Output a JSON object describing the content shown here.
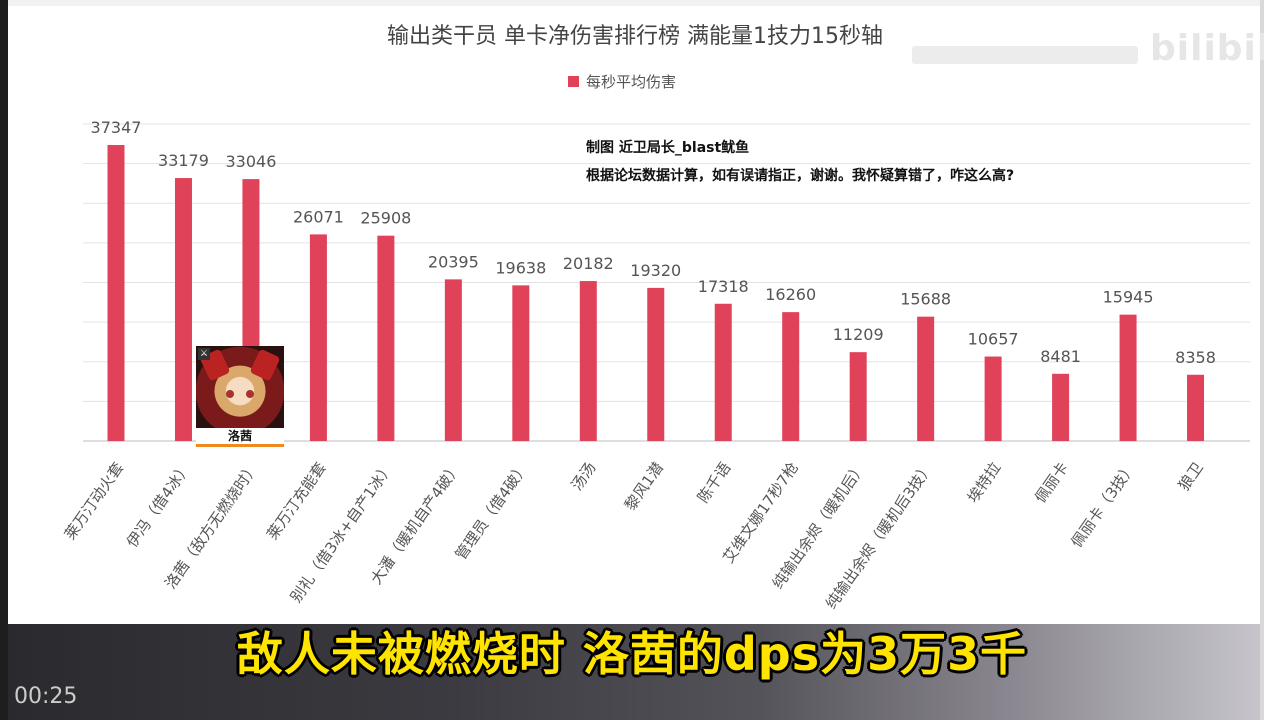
{
  "chart_data": {
    "type": "bar",
    "title": "输出类干员 单卡净伤害排行榜 满能量1技力15秒轴",
    "legend": {
      "label": "每秒平均伤害",
      "position": "top-center",
      "color": "#e0425a"
    },
    "categories": [
      "莱万汀动火套",
      "伊冯（借4冰）",
      "洛茜（敌方无燃烧时）",
      "莱万汀充能套",
      "别礼（借3冰+自产1冰）",
      "大潘（暖机自产4破）",
      "管理员（借4破）",
      "汤汤",
      "黎风1潜",
      "陈千语",
      "艾维文娜17秒7枪",
      "纯输出余烬（暖机后）",
      "纯输出余烬（暖机后3技）",
      "埃特拉",
      "佩丽卡",
      "佩丽卡（3技）",
      "狼卫"
    ],
    "series": [
      {
        "name": "每秒平均伤害",
        "values": [
          37347,
          33179,
          33046,
          26071,
          25908,
          20395,
          19638,
          20182,
          19320,
          17318,
          16260,
          11209,
          15688,
          10657,
          8481,
          15945,
          8358
        ]
      }
    ],
    "ylim": [
      0,
      40000
    ],
    "grid": true,
    "bar_color": "#e0425a",
    "annotations": [
      "制图 近卫局长_blast鱿鱼",
      "根据论坛数据计算，如有误请指正，谢谢。我怀疑算错了，咋这么高?"
    ]
  },
  "avatar": {
    "name": "洛茜",
    "icon": "character-portrait-icon"
  },
  "watermark": {
    "text": "bilibili"
  },
  "subtitle": "敌人未被燃烧时 洛茜的dps为3万3千",
  "timestamp": "00:25"
}
